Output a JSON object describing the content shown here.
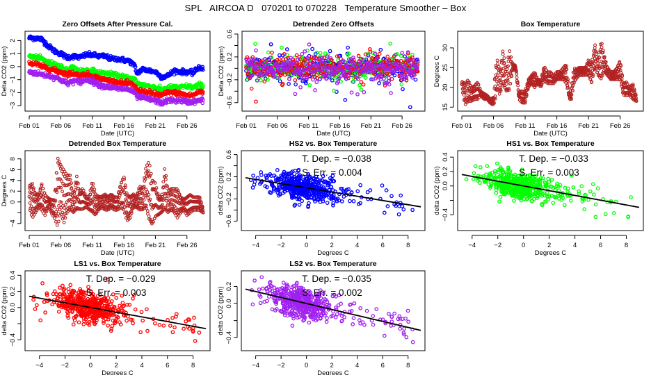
{
  "page_title": "SPL   AIRCOA D   070201 to 070228   Temperature Smoother – Box",
  "colors": {
    "HS2": "#0000ff",
    "HS1": "#00ff00",
    "LS1": "#ff0000",
    "LS2": "#a020f0",
    "box_temp": "#b22222",
    "fit_line": "#000000"
  },
  "chart_data": [
    {
      "id": "zero-offsets",
      "type": "line",
      "title": "Zero Offsets After Pressure Cal.",
      "xlabel": "Date (UTC)",
      "ylabel": "Delta CO2 (ppm)",
      "xlim": [
        0,
        28
      ],
      "ylim": [
        -3.2,
        2.5
      ],
      "xticks": [
        0,
        5,
        10,
        15,
        20,
        25
      ],
      "xticklabels": [
        "Feb 01",
        "Feb 06",
        "Feb 11",
        "Feb 16",
        "Feb 21",
        "Feb 26"
      ],
      "yticks": [
        -3,
        -2,
        -1,
        0,
        1,
        2
      ],
      "yticklabels": [
        "-3",
        "-2",
        "-1",
        "0",
        "1",
        "2"
      ],
      "series": [
        {
          "name": "HS2",
          "x": [
            0,
            1,
            2,
            3,
            4,
            5,
            6,
            7,
            8,
            9,
            10,
            11,
            12,
            13,
            14,
            15,
            16,
            16.8,
            17,
            18,
            19,
            20,
            21,
            22,
            23,
            24,
            25,
            26,
            27,
            27.5
          ],
          "y": [
            2.2,
            2.2,
            2.1,
            1.6,
            1.2,
            1.0,
            0.7,
            0.8,
            0.7,
            0.9,
            0.9,
            0.8,
            0.8,
            0.6,
            0.6,
            0.5,
            0.4,
            0.0,
            -0.5,
            -0.2,
            -0.3,
            -0.4,
            -0.8,
            -0.7,
            -0.3,
            -0.4,
            -0.4,
            -0.5,
            0.0,
            -0.2
          ]
        },
        {
          "name": "HS1",
          "x": [
            0,
            1,
            2,
            3,
            4,
            5,
            6,
            7,
            8,
            9,
            10,
            11,
            12,
            13,
            14,
            15,
            16,
            16.8,
            17,
            18,
            19,
            20,
            21,
            22,
            23,
            24,
            25,
            26,
            27,
            27.5
          ],
          "y": [
            0.8,
            0.7,
            0.6,
            0.3,
            0.2,
            0.0,
            -0.3,
            -0.1,
            -0.3,
            -0.3,
            -0.3,
            -0.5,
            -0.5,
            -0.6,
            -0.7,
            -0.8,
            -0.9,
            -1.0,
            -1.3,
            -1.4,
            -1.5,
            -1.6,
            -1.8,
            -1.6,
            -1.6,
            -1.6,
            -1.5,
            -1.6,
            -1.4,
            -1.5
          ]
        },
        {
          "name": "LS1",
          "x": [
            0,
            1,
            2,
            3,
            4,
            5,
            6,
            7,
            8,
            9,
            10,
            11,
            12,
            13,
            14,
            15,
            16,
            16.8,
            17,
            18,
            19,
            20,
            21,
            22,
            23,
            24,
            25,
            26,
            27,
            27.5
          ],
          "y": [
            0.3,
            0.2,
            0.0,
            -0.1,
            -0.3,
            -0.4,
            -0.6,
            -0.5,
            -0.7,
            -0.6,
            -0.7,
            -0.9,
            -1.0,
            -1.1,
            -1.2,
            -1.3,
            -1.3,
            -1.5,
            -1.8,
            -1.9,
            -2.0,
            -2.1,
            -2.2,
            -2.0,
            -2.0,
            -2.1,
            -2.2,
            -2.2,
            -1.9,
            -2.0
          ]
        },
        {
          "name": "LS2",
          "x": [
            0,
            1,
            2,
            3,
            4,
            5,
            6,
            7,
            8,
            9,
            10,
            11,
            12,
            13,
            14,
            15,
            16,
            16.8,
            17,
            18,
            19,
            20,
            21,
            22,
            23,
            24,
            25,
            26,
            27,
            27.5
          ],
          "y": [
            -0.4,
            -0.5,
            -0.6,
            -0.7,
            -0.8,
            -1.0,
            -1.3,
            -1.1,
            -1.2,
            -1.0,
            -1.1,
            -1.4,
            -1.5,
            -1.6,
            -1.7,
            -1.7,
            -1.8,
            -2.0,
            -2.3,
            -2.4,
            -2.5,
            -2.6,
            -2.8,
            -2.6,
            -2.6,
            -2.6,
            -2.7,
            -2.7,
            -2.6,
            -2.6
          ]
        }
      ]
    },
    {
      "id": "detrended-zero-offsets",
      "type": "scatter",
      "title": "Detrended Zero Offsets",
      "xlabel": "Date (UTC)",
      "ylabel": "Delta CO2 (ppm)",
      "xlim": [
        0,
        28
      ],
      "ylim": [
        -0.7,
        0.6
      ],
      "xticks": [
        0,
        5,
        10,
        15,
        20,
        25
      ],
      "xticklabels": [
        "Feb 01",
        "Feb 06",
        "Feb 11",
        "Feb 16",
        "Feb 21",
        "Feb 26"
      ],
      "yticks": [
        -0.6,
        -0.4,
        -0.2,
        0.0,
        0.2,
        0.4,
        0.6
      ],
      "yticklabels": [
        "-0.6",
        "",
        "-0.2",
        "",
        "0.2",
        "",
        "0.6"
      ],
      "spread_sd": 0.1,
      "series": [
        "HS2",
        "HS1",
        "LS1",
        "LS2"
      ]
    },
    {
      "id": "box-temperature",
      "type": "line",
      "title": "Box Temperature",
      "xlabel": "Date (UTC)",
      "ylabel": "Degrees C",
      "xlim": [
        0,
        28
      ],
      "ylim": [
        14.7,
        33.5
      ],
      "xticks": [
        0,
        5,
        10,
        15,
        20,
        25
      ],
      "xticklabels": [
        "Feb 01",
        "Feb 06",
        "Feb 11",
        "Feb 16",
        "Feb 21",
        "Feb 26"
      ],
      "yticks": [
        15,
        20,
        25,
        30
      ],
      "yticklabels": [
        "15",
        "20",
        "25",
        "30"
      ],
      "series": [
        {
          "name": "Box Temperature",
          "x": [
            0,
            0.5,
            1,
            1.5,
            2,
            2.5,
            3,
            3.5,
            4,
            4.5,
            5,
            5.3,
            5.6,
            6,
            6.5,
            7,
            7.5,
            8,
            8.5,
            9,
            9.5,
            10,
            10.5,
            11,
            11.5,
            12,
            12.5,
            13,
            13.5,
            14,
            14.5,
            15,
            15.5,
            16,
            16.5,
            17,
            17.3,
            17.7,
            18,
            18.5,
            19,
            19.5,
            20,
            20.5,
            21,
            21.5,
            22,
            22.5,
            23,
            23.5,
            24,
            24.5,
            25,
            25.5,
            26,
            26.5,
            27,
            27.5
          ],
          "y_low": [
            20,
            15.5,
            16.5,
            16.5,
            17,
            17,
            18,
            17,
            17,
            16,
            15.5,
            17,
            20,
            18,
            21,
            19,
            19,
            24,
            25,
            17,
            16,
            16,
            20,
            21,
            20,
            21,
            20,
            22,
            21,
            21,
            21,
            22,
            22,
            22,
            21,
            17,
            17,
            21,
            22,
            23,
            23,
            23,
            23,
            21,
            25,
            23,
            22,
            24,
            23,
            22,
            22,
            22,
            22,
            18,
            18,
            18,
            17,
            16.5
          ],
          "y_high": [
            21.5,
            21,
            22,
            20,
            20.5,
            21.5,
            19,
            18.5,
            18,
            17,
            17.5,
            25,
            27,
            24,
            29.5,
            24,
            29.5,
            26,
            25.5,
            19,
            19,
            19,
            22,
            23,
            24,
            22,
            22,
            25.5,
            24,
            24,
            23,
            24,
            24,
            25,
            26,
            18,
            20,
            25,
            24.5,
            25,
            25,
            25,
            27,
            26,
            31,
            27,
            32,
            28,
            25,
            24,
            24,
            25,
            27,
            21,
            21.5,
            20,
            21,
            18
          ]
        }
      ]
    },
    {
      "id": "detrended-box-temperature",
      "type": "line",
      "title": "Detrended Box Temperature",
      "xlabel": "Date (UTC)",
      "ylabel": "Degrees C",
      "xlim": [
        0,
        28
      ],
      "ylim": [
        -4.8,
        9
      ],
      "xticks": [
        0,
        5,
        10,
        15,
        20,
        25
      ],
      "xticklabels": [
        "Feb 01",
        "Feb 06",
        "Feb 11",
        "Feb 16",
        "Feb 21",
        "Feb 26"
      ],
      "yticks": [
        -4,
        -2,
        0,
        2,
        4,
        6,
        8
      ],
      "yticklabels": [
        "-4",
        "",
        "0",
        "2",
        "4",
        "6",
        "8"
      ],
      "series": [
        {
          "name": "Detrended Box Temperature",
          "x": [
            0,
            0.5,
            1,
            1.5,
            2,
            2.5,
            3,
            3.5,
            4,
            4.5,
            5,
            5.5,
            6,
            6.5,
            7,
            7.5,
            8,
            8.5,
            9,
            9.5,
            10,
            10.5,
            11,
            11.5,
            12,
            12.5,
            13,
            13.5,
            14,
            14.5,
            15,
            15.5,
            16,
            16.5,
            17,
            17.5,
            18,
            18.5,
            19,
            19.5,
            20,
            20.5,
            21,
            21.5,
            22,
            22.5,
            23,
            23.5,
            24,
            24.5,
            25,
            25.5,
            26,
            26.5,
            27,
            27.5
          ],
          "y_low": [
            -1,
            -3,
            -2,
            -1,
            -1.5,
            -2.5,
            -1,
            -2,
            -3,
            -4.5,
            -2,
            -4,
            -2,
            -1.5,
            -2,
            -1.5,
            -1.5,
            -1.5,
            -1,
            -1.5,
            -2,
            -2.5,
            -1.5,
            -1,
            -1.5,
            -1.5,
            -1,
            -1.5,
            -1.5,
            -1,
            -1.5,
            -3.5,
            -3,
            -1,
            -1,
            -1.5,
            -1.5,
            -1,
            -3.5,
            -4.5,
            -3,
            -2.5,
            -2,
            -1.5,
            -2,
            -1.5,
            -2,
            -3,
            -2,
            -1.5,
            -2.5,
            -2,
            -1.5,
            -1.5,
            -1.5,
            -2
          ],
          "y_high": [
            3,
            3.5,
            1.5,
            1.5,
            3.5,
            1.5,
            0.8,
            0.5,
            0.5,
            8.5,
            7,
            6,
            5,
            5,
            1,
            5,
            2,
            2.5,
            1,
            1,
            4,
            1.5,
            1,
            1,
            1.5,
            1,
            1.5,
            1,
            1,
            3.5,
            5,
            1.5,
            1,
            1.5,
            1,
            3,
            2.5,
            6.5,
            7.5,
            4,
            3.5,
            1,
            1,
            6.5,
            2,
            2.5,
            2.5,
            2.5,
            1,
            0.5,
            1,
            1.5,
            1,
            1,
            1,
            -1
          ]
        }
      ]
    },
    {
      "id": "hs2-vs-box-temperature",
      "type": "scatter",
      "title": "HS2 vs. Box Temperature",
      "series_name": "HS2",
      "xlabel": "Degrees C",
      "ylabel": "delta CO2 (ppm)",
      "xlim": [
        -4.8,
        9
      ],
      "ylim": [
        -0.72,
        0.62
      ],
      "xticks": [
        -4,
        -2,
        0,
        2,
        4,
        6,
        8
      ],
      "xticklabels": [
        "-4",
        "-2",
        "0",
        "2",
        "4",
        "6",
        "8"
      ],
      "yticks": [
        -0.6,
        -0.4,
        -0.2,
        0.0,
        0.2,
        0.4,
        0.6
      ],
      "yticklabels": [
        "-0.6",
        "",
        "-0.2",
        "",
        "0.2",
        "",
        "0.6"
      ],
      "fit": {
        "slope": -0.038,
        "intercept": 0.0
      },
      "spread_sd": 0.12,
      "annotation": [
        "T. Dep. =  −0.038",
        "S. Err. =  0.004"
      ]
    },
    {
      "id": "hs1-vs-box-temperature",
      "type": "scatter",
      "title": "HS1 vs. Box Temperature",
      "series_name": "HS1",
      "xlabel": "Degrees C",
      "ylabel": "delta CO2 (ppm)",
      "xlim": [
        -4.8,
        9
      ],
      "ylim": [
        -0.58,
        0.45
      ],
      "xticks": [
        -4,
        -2,
        0,
        2,
        4,
        6,
        8
      ],
      "xticklabels": [
        "-4",
        "-2",
        "0",
        "2",
        "4",
        "6",
        "8"
      ],
      "yticks": [
        -0.4,
        -0.2,
        0.0,
        0.2,
        0.4
      ],
      "yticklabels": [
        "-0.4",
        "",
        "0.0",
        "0.2",
        "0.4"
      ],
      "fit": {
        "slope": -0.033,
        "intercept": 0.0
      },
      "spread_sd": 0.09,
      "annotation": [
        "T. Dep. =  −0.033",
        "S. Err. =  0.003"
      ]
    },
    {
      "id": "ls1-vs-box-temperature",
      "type": "scatter",
      "title": "LS1 vs. Box Temperature",
      "series_name": "LS1",
      "xlabel": "Degrees C",
      "ylabel": "delta CO2 (ppm)",
      "xlim": [
        -4.8,
        9
      ],
      "ylim": [
        -0.5,
        0.42
      ],
      "xticks": [
        -4,
        -2,
        0,
        2,
        4,
        6,
        8
      ],
      "xticklabels": [
        "-4",
        "-2",
        "0",
        "2",
        "4",
        "6",
        "8"
      ],
      "yticks": [
        -0.4,
        -0.2,
        0.0,
        0.2,
        0.4
      ],
      "yticklabels": [
        "-0.4",
        "",
        "0.0",
        "0.2",
        "0.4"
      ],
      "fit": {
        "slope": -0.029,
        "intercept": 0.0
      },
      "spread_sd": 0.09,
      "annotation": [
        "T. Dep. =  −0.029",
        "S. Err. =  0.003"
      ]
    },
    {
      "id": "ls2-vs-box-temperature",
      "type": "scatter",
      "title": "LS2 vs. Box Temperature",
      "series_name": "LS2",
      "xlabel": "Degrees C",
      "ylabel": "delta CO2 (ppm)",
      "xlim": [
        -4.8,
        9
      ],
      "ylim": [
        -0.52,
        0.35
      ],
      "xticks": [
        -4,
        -2,
        0,
        2,
        4,
        6,
        8
      ],
      "xticklabels": [
        "-4",
        "-2",
        "0",
        "2",
        "4",
        "6",
        "8"
      ],
      "yticks": [
        -0.4,
        -0.2,
        0.0,
        0.2
      ],
      "yticklabels": [
        "-0.4",
        "",
        "0.0",
        "0.2"
      ],
      "fit": {
        "slope": -0.035,
        "intercept": 0.0
      },
      "spread_sd": 0.09,
      "annotation": [
        "T. Dep. =  −0.035",
        "S. Err. =  0.002"
      ]
    }
  ]
}
